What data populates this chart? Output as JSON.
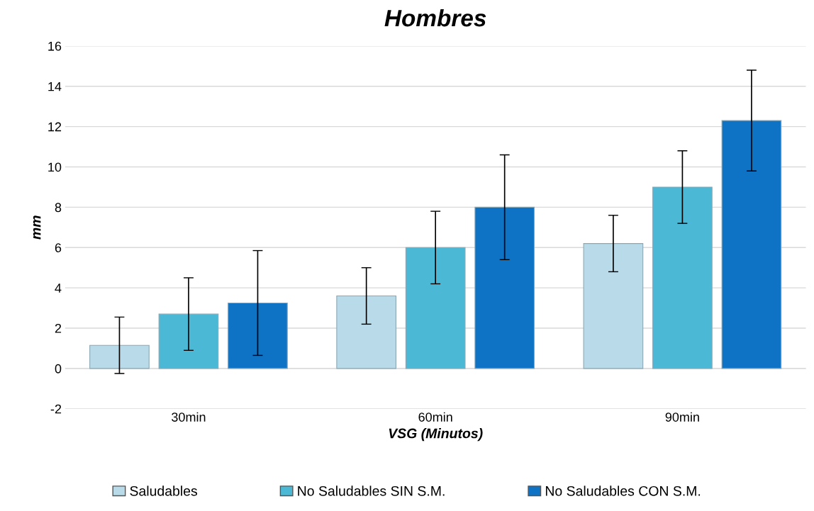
{
  "chart_data": {
    "type": "bar",
    "title": "Hombres",
    "xlabel": "VSG (Minutos)",
    "ylabel": "mm",
    "categories": [
      "30min",
      "60min",
      "90min"
    ],
    "series": [
      {
        "name": "Saludables",
        "color": "#b9dbe9",
        "values": [
          1.15,
          3.6,
          6.2
        ],
        "errors": [
          1.4,
          1.4,
          1.4
        ]
      },
      {
        "name": "No Saludables SIN S.M.",
        "color": "#4bb9d5",
        "values": [
          2.7,
          6.0,
          9.0
        ],
        "errors": [
          1.8,
          1.8,
          1.8
        ]
      },
      {
        "name": "No Saludables CON S.M.",
        "color": "#0e73c5",
        "values": [
          3.25,
          8.0,
          12.3
        ],
        "errors": [
          2.6,
          2.6,
          2.5
        ]
      }
    ],
    "ylim": [
      -2,
      16
    ],
    "yticks": [
      -2,
      0,
      2,
      4,
      6,
      8,
      10,
      12,
      14,
      16
    ],
    "grid": "y",
    "legend": "bottom"
  }
}
